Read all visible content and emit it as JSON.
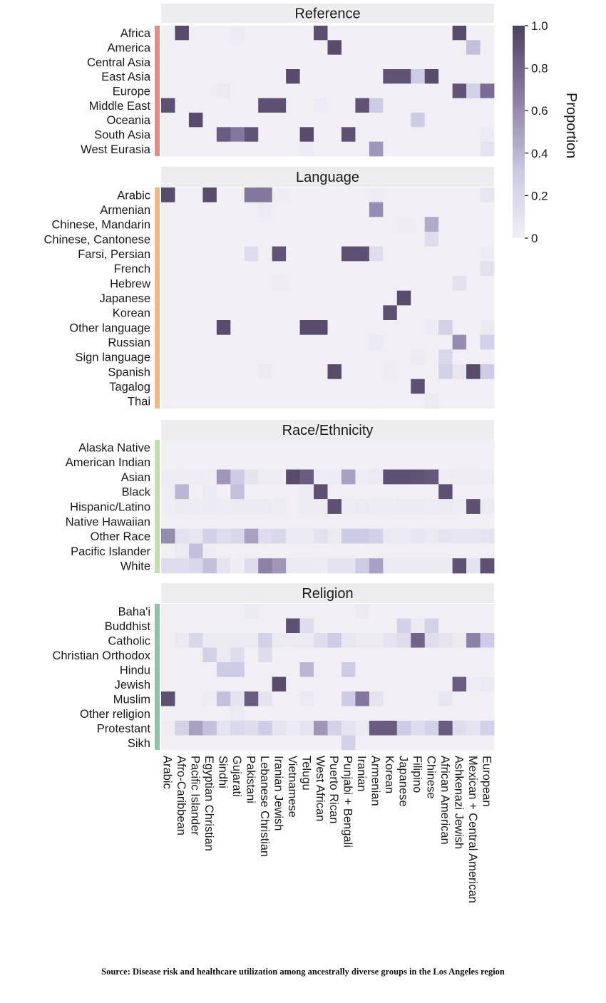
{
  "chart_data": {
    "type": "heatmap",
    "columns": [
      "Arabic",
      "Afro-Caribbean",
      "Pacific Islander",
      "Egyptian Christian",
      "Sindhi",
      "Gujarati",
      "Pakistani",
      "Lebanese Christian",
      "Iranian Jewish",
      "Vietnamese",
      "Telugu",
      "West African",
      "Puerto Rican",
      "Punjabi + Bengali",
      "Iranian",
      "Armenian",
      "Korean",
      "Japanese",
      "Filipino",
      "Chinese",
      "African American",
      "Ashkenazi Jewish",
      "Mexican + Central American",
      "European"
    ],
    "colorbar": {
      "title": "Proportion",
      "min": 0,
      "max": 1,
      "ticks": [
        "1.0",
        "0.8",
        "0.6",
        "0.4",
        "0.2",
        "0"
      ],
      "colors": [
        "#f1eff4",
        "#cdcbe5",
        "#7a6c94",
        "#4f4362"
      ]
    },
    "panels": [
      {
        "title": "Reference",
        "accent": "#e58b80",
        "rows": [
          "Africa",
          "America",
          "Central Asia",
          "East Asia",
          "Europe",
          "Middle East",
          "Oceania",
          "South Asia",
          "West Eurasia"
        ],
        "values": [
          [
            0,
            0.95,
            0,
            0,
            0,
            0.03,
            0,
            0,
            0,
            0,
            0,
            0.93,
            0,
            0,
            0,
            0,
            0,
            0,
            0,
            0,
            0,
            0.95,
            0,
            0
          ],
          [
            0,
            0,
            0,
            0,
            0,
            0,
            0,
            0,
            0,
            0,
            0,
            0,
            0.95,
            0,
            0,
            0,
            0,
            0,
            0,
            0,
            0,
            0,
            0.35,
            0
          ],
          [
            0,
            0,
            0,
            0,
            0,
            0,
            0,
            0,
            0,
            0,
            0,
            0,
            0,
            0,
            0,
            0,
            0,
            0,
            0,
            0,
            0,
            0,
            0,
            0
          ],
          [
            0,
            0,
            0,
            0,
            0,
            0,
            0,
            0,
            0,
            0.95,
            0,
            0,
            0,
            0,
            0,
            0,
            0.9,
            0.9,
            0.3,
            0.95,
            0,
            0,
            0,
            0
          ],
          [
            0,
            0,
            0,
            0,
            0.05,
            0,
            0,
            0,
            0,
            0,
            0,
            0,
            0,
            0,
            0,
            0,
            0,
            0,
            0,
            0,
            0,
            0.9,
            0.25,
            0.75
          ],
          [
            0.92,
            0,
            0,
            0,
            0,
            0,
            0,
            0.92,
            0.92,
            0,
            0,
            0.03,
            0,
            0,
            0.9,
            0.3,
            0,
            0,
            0,
            0,
            0,
            0,
            0,
            0
          ],
          [
            0,
            0,
            0.95,
            0,
            0,
            0,
            0,
            0,
            0,
            0,
            0,
            0,
            0,
            0,
            0,
            0,
            0,
            0,
            0.3,
            0,
            0,
            0,
            0,
            0
          ],
          [
            0,
            0,
            0,
            0,
            0.85,
            0.7,
            0.9,
            0,
            0,
            0,
            0.95,
            0,
            0,
            0.92,
            0,
            0,
            0,
            0,
            0,
            0,
            0,
            0,
            0,
            0.03
          ],
          [
            0,
            0,
            0,
            0,
            0,
            0,
            0,
            0,
            0,
            0,
            0.03,
            0,
            0,
            0,
            0,
            0.55,
            0,
            0,
            0,
            0,
            0,
            0,
            0,
            0.1
          ]
        ]
      },
      {
        "title": "Language",
        "accent": "#f2b784",
        "rows": [
          "Arabic",
          "Armenian",
          "Chinese, Mandarin",
          "Chinese, Cantonese",
          "Farsi, Persian",
          "French",
          "Hebrew",
          "Japanese",
          "Korean",
          "Other language",
          "Russian",
          "Sign language",
          "Spanish",
          "Tagalog",
          "Thai"
        ],
        "values": [
          [
            0.95,
            0,
            0,
            0.95,
            0,
            0,
            0.7,
            0.7,
            0.02,
            0,
            0,
            0,
            0,
            0,
            0,
            0.03,
            0,
            0,
            0,
            0,
            0,
            0,
            0,
            0.08
          ],
          [
            0,
            0,
            0,
            0,
            0,
            0,
            0,
            0.05,
            0,
            0,
            0,
            0,
            0,
            0,
            0,
            0.6,
            0,
            0,
            0,
            0,
            0,
            0,
            0,
            0
          ],
          [
            0,
            0,
            0,
            0,
            0,
            0,
            0,
            0,
            0,
            0,
            0,
            0,
            0,
            0,
            0,
            0,
            0,
            0.02,
            0,
            0.45,
            0,
            0,
            0,
            0
          ],
          [
            0,
            0,
            0,
            0,
            0,
            0,
            0,
            0,
            0,
            0,
            0,
            0,
            0,
            0,
            0,
            0,
            0,
            0,
            0,
            0.15,
            0,
            0,
            0,
            0
          ],
          [
            0,
            0,
            0,
            0,
            0,
            0,
            0.15,
            0,
            0.9,
            0,
            0,
            0,
            0,
            0.92,
            0.92,
            0.15,
            0,
            0,
            0,
            0,
            0,
            0,
            0,
            0.03
          ],
          [
            0,
            0,
            0,
            0,
            0,
            0,
            0,
            0,
            0,
            0,
            0,
            0,
            0,
            0,
            0,
            0,
            0,
            0,
            0,
            0,
            0,
            0,
            0,
            0.12
          ],
          [
            0,
            0,
            0,
            0,
            0,
            0,
            0,
            0,
            0.02,
            0,
            0,
            0,
            0,
            0,
            0,
            0,
            0,
            0,
            0,
            0,
            0,
            0.12,
            0,
            0
          ],
          [
            0,
            0,
            0,
            0,
            0,
            0,
            0,
            0,
            0,
            0,
            0,
            0,
            0,
            0,
            0,
            0,
            0,
            0.95,
            0,
            0,
            0,
            0,
            0,
            0
          ],
          [
            0,
            0,
            0,
            0,
            0,
            0,
            0,
            0,
            0,
            0,
            0,
            0,
            0,
            0,
            0,
            0,
            0.92,
            0,
            0,
            0,
            0,
            0,
            0,
            0
          ],
          [
            0,
            0,
            0,
            0,
            0.95,
            0,
            0,
            0,
            0,
            0,
            0.95,
            0.95,
            0,
            0,
            0,
            0,
            0,
            0,
            0,
            0.03,
            0.25,
            0,
            0,
            0.05
          ],
          [
            0,
            0,
            0,
            0,
            0,
            0,
            0,
            0,
            0,
            0,
            0,
            0,
            0,
            0,
            0,
            0.05,
            0,
            0,
            0,
            0,
            0,
            0.6,
            0,
            0.25
          ],
          [
            0,
            0,
            0,
            0,
            0,
            0,
            0,
            0,
            0,
            0,
            0,
            0,
            0,
            0,
            0,
            0,
            0,
            0,
            0.03,
            0,
            0.2,
            0,
            0,
            0
          ],
          [
            0,
            0,
            0,
            0,
            0,
            0,
            0,
            0.05,
            0,
            0,
            0,
            0,
            0.95,
            0,
            0,
            0,
            0.02,
            0,
            0,
            0,
            0.25,
            0.08,
            0.95,
            0.3
          ],
          [
            0,
            0,
            0,
            0,
            0,
            0,
            0,
            0,
            0,
            0,
            0,
            0,
            0,
            0,
            0,
            0,
            0,
            0,
            0.92,
            0,
            0,
            0,
            0,
            0
          ],
          [
            0,
            0,
            0,
            0,
            0,
            0,
            0,
            0,
            0,
            0,
            0,
            0,
            0,
            0,
            0,
            0,
            0,
            0,
            0,
            0.05,
            0,
            0,
            0,
            0
          ]
        ]
      },
      {
        "title": "Race/Ethnicity",
        "accent": "#bfe0a6",
        "rows": [
          "Alaska Native",
          "American Indian",
          "Asian",
          "Black",
          "Hispanic/Latino",
          "Native Hawaiian",
          "Other Race",
          "Pacific Islander",
          "White"
        ],
        "values": [
          [
            0,
            0,
            0,
            0,
            0,
            0,
            0,
            0,
            0,
            0,
            0,
            0,
            0,
            0,
            0,
            0,
            0,
            0,
            0,
            0,
            0,
            0,
            0,
            0
          ],
          [
            0,
            0,
            0,
            0,
            0,
            0,
            0,
            0,
            0,
            0,
            0,
            0,
            0,
            0,
            0,
            0,
            0,
            0,
            0,
            0,
            0,
            0,
            0,
            0
          ],
          [
            0.03,
            0.02,
            0.03,
            0.02,
            0.55,
            0.3,
            0.1,
            0.03,
            0.03,
            0.95,
            0.85,
            0.03,
            0.03,
            0.5,
            0.03,
            0.05,
            0.92,
            0.92,
            0.9,
            0.88,
            0.03,
            0.02,
            0.02,
            0.03
          ],
          [
            0.02,
            0.4,
            0,
            0.05,
            0,
            0.35,
            0,
            0,
            0,
            0,
            0.03,
            0.92,
            0,
            0,
            0,
            0,
            0,
            0,
            0,
            0,
            0.92,
            0,
            0,
            0
          ],
          [
            0.02,
            0.05,
            0.03,
            0.05,
            0.03,
            0.05,
            0.05,
            0.05,
            0.03,
            0,
            0.03,
            0.03,
            0.92,
            0.03,
            0.05,
            0.03,
            0.03,
            0.05,
            0.05,
            0.03,
            0.05,
            0.03,
            0.92,
            0.05
          ],
          [
            0,
            0,
            0,
            0,
            0,
            0,
            0,
            0,
            0,
            0,
            0,
            0,
            0,
            0,
            0,
            0,
            0,
            0,
            0,
            0,
            0,
            0,
            0,
            0
          ],
          [
            0.6,
            0.12,
            0.08,
            0.25,
            0.15,
            0.2,
            0.5,
            0.15,
            0.2,
            0.05,
            0.05,
            0.12,
            0.05,
            0.3,
            0.3,
            0.25,
            0.05,
            0.05,
            0.08,
            0.05,
            0.1,
            0.08,
            0.08,
            0.1
          ],
          [
            0,
            0.05,
            0.35,
            0.02,
            0,
            0,
            0,
            0,
            0,
            0,
            0,
            0,
            0,
            0,
            0,
            0,
            0,
            0,
            0,
            0,
            0,
            0,
            0,
            0
          ],
          [
            0.15,
            0.15,
            0.2,
            0.35,
            0.1,
            0.02,
            0.15,
            0.65,
            0.55,
            0.05,
            0.05,
            0.03,
            0.1,
            0.1,
            0.3,
            0.5,
            0.05,
            0.05,
            0.05,
            0.05,
            0.05,
            0.92,
            0.1,
            0.92
          ]
        ]
      },
      {
        "title": "Religion",
        "accent": "#8cc4a8",
        "rows": [
          "Baha'i",
          "Buddhist",
          "Catholic",
          "Christian Orthodox",
          "Hindu",
          "Jewish",
          "Muslim",
          "Other religion",
          "Protestant",
          "Sikh"
        ],
        "values": [
          [
            0,
            0,
            0,
            0,
            0,
            0,
            0.05,
            0,
            0,
            0,
            0,
            0,
            0,
            0,
            0.05,
            0,
            0,
            0,
            0,
            0,
            0,
            0,
            0,
            0
          ],
          [
            0,
            0,
            0,
            0,
            0,
            0,
            0,
            0,
            0,
            0.92,
            0.15,
            0,
            0,
            0,
            0,
            0,
            0,
            0.25,
            0.05,
            0.25,
            0,
            0,
            0,
            0
          ],
          [
            0,
            0.05,
            0.2,
            0.05,
            0.05,
            0.05,
            0.05,
            0.25,
            0.05,
            0.05,
            0.05,
            0.15,
            0.3,
            0.08,
            0.05,
            0.05,
            0.1,
            0.15,
            0.8,
            0.15,
            0.1,
            0.05,
            0.65,
            0.3
          ],
          [
            0,
            0,
            0,
            0.25,
            0.05,
            0.15,
            0,
            0.15,
            0,
            0,
            0,
            0,
            0,
            0,
            0,
            0,
            0,
            0,
            0,
            0,
            0,
            0,
            0,
            0
          ],
          [
            0,
            0,
            0,
            0,
            0.3,
            0.3,
            0,
            0,
            0,
            0,
            0.4,
            0,
            0,
            0.3,
            0,
            0,
            0,
            0,
            0,
            0,
            0,
            0,
            0,
            0
          ],
          [
            0,
            0,
            0,
            0,
            0,
            0,
            0,
            0,
            0.95,
            0,
            0,
            0,
            0,
            0,
            0,
            0,
            0,
            0,
            0,
            0,
            0,
            0.85,
            0.03,
            0.05
          ],
          [
            0.92,
            0,
            0,
            0.03,
            0.35,
            0.1,
            0.85,
            0.1,
            0,
            0,
            0.05,
            0,
            0,
            0.3,
            0.7,
            0.1,
            0,
            0,
            0,
            0,
            0.08,
            0,
            0,
            0
          ],
          [
            0,
            0,
            0,
            0,
            0,
            0.05,
            0,
            0,
            0,
            0,
            0,
            0,
            0,
            0,
            0,
            0,
            0,
            0,
            0,
            0,
            0,
            0,
            0,
            0
          ],
          [
            0.02,
            0.25,
            0.5,
            0.35,
            0.1,
            0.2,
            0.15,
            0.3,
            0.1,
            0.05,
            0.1,
            0.55,
            0.25,
            0.1,
            0.05,
            0.85,
            0.85,
            0.3,
            0.15,
            0.25,
            0.85,
            0.15,
            0.1,
            0.25
          ],
          [
            0,
            0,
            0,
            0,
            0,
            0,
            0,
            0,
            0,
            0,
            0,
            0,
            0,
            0.25,
            0,
            0,
            0,
            0,
            0,
            0,
            0,
            0,
            0,
            0
          ]
        ]
      }
    ]
  },
  "caption": "Source: Disease risk and healthcare utilization among ancestrally diverse groups in the Los Angeles region"
}
